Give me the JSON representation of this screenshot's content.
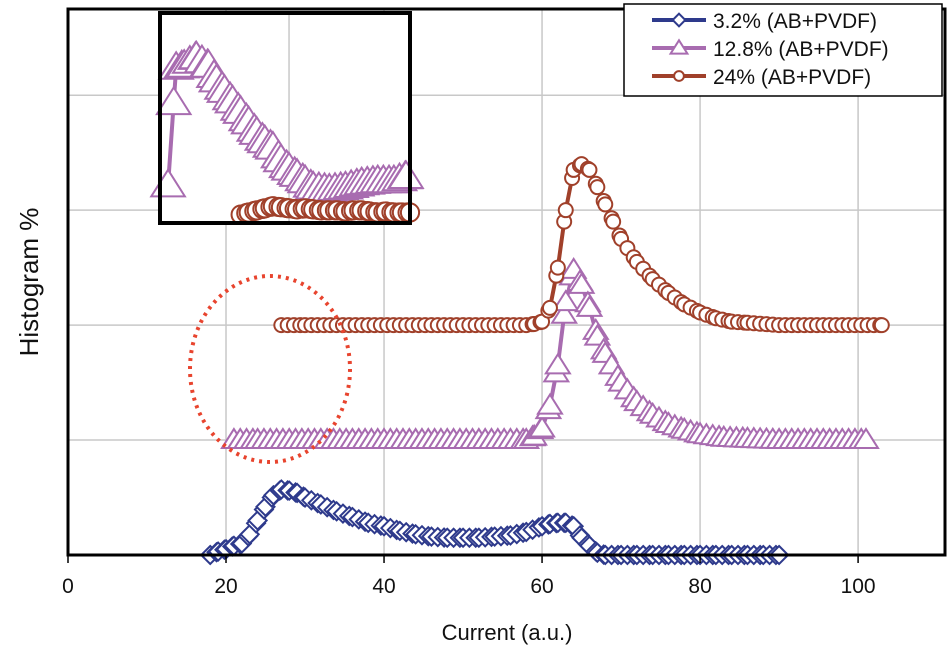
{
  "chart_data": {
    "type": "line",
    "title": "",
    "xlabel": "Current (a.u.)",
    "ylabel": "Histogram %",
    "xlim": [
      0,
      111
    ],
    "ylim": [
      0,
      4.75
    ],
    "x_ticks": [
      "0",
      "20",
      "40",
      "60",
      "80",
      "100"
    ],
    "y_ticks_labeled": false,
    "grid": true,
    "legend_position": "top-right",
    "series": [
      {
        "name": "3.2% (AB+PVDF)",
        "color": "#2e3a8c",
        "marker": "diamond",
        "x": [
          18,
          19,
          20,
          21,
          22,
          23,
          24,
          25,
          26,
          27,
          28,
          29,
          30,
          32,
          34,
          36,
          38,
          40,
          42,
          44,
          46,
          48,
          50,
          52,
          54,
          56,
          58,
          60,
          61,
          62,
          63,
          64,
          65,
          66,
          67,
          68,
          70,
          72,
          74,
          76,
          78,
          80,
          82,
          84,
          86,
          88,
          90
        ],
        "y": [
          0,
          0.03,
          0.05,
          0.08,
          0.1,
          0.18,
          0.3,
          0.42,
          0.52,
          0.57,
          0.56,
          0.54,
          0.5,
          0.44,
          0.38,
          0.33,
          0.28,
          0.25,
          0.21,
          0.18,
          0.16,
          0.15,
          0.15,
          0.15,
          0.16,
          0.17,
          0.2,
          0.25,
          0.27,
          0.28,
          0.28,
          0.25,
          0.15,
          0.08,
          0.02,
          0,
          0,
          0,
          0,
          0,
          0,
          0,
          0,
          0,
          0,
          0,
          0
        ]
      },
      {
        "name": "12.8% (AB+PVDF)",
        "color": "#a86cb0",
        "marker": "triangle",
        "x": [
          21,
          24,
          28,
          32,
          36,
          40,
          44,
          48,
          52,
          56,
          58,
          59,
          60,
          61,
          62,
          63,
          64,
          65,
          66,
          67,
          68,
          70,
          72,
          74,
          76,
          78,
          80,
          83,
          86,
          90,
          94,
          98,
          101
        ],
        "y": [
          1,
          1,
          1,
          1,
          1,
          1,
          1,
          1,
          1,
          1,
          1,
          1.03,
          1.1,
          1.3,
          1.65,
          2.2,
          2.48,
          2.35,
          2.15,
          1.9,
          1.75,
          1.5,
          1.33,
          1.22,
          1.14,
          1.09,
          1.05,
          1.02,
          1.01,
          1,
          1,
          1,
          1
        ]
      },
      {
        "name": "24% (AB+PVDF)",
        "color": "#a0402a",
        "marker": "circle",
        "x": [
          27,
          30,
          34,
          38,
          42,
          46,
          50,
          54,
          58,
          59,
          60,
          61,
          62,
          63,
          64,
          65,
          66,
          67,
          68,
          69,
          70,
          72,
          74,
          76,
          78,
          80,
          82,
          84,
          86,
          90,
          94,
          98,
          103
        ],
        "y": [
          2,
          2,
          2,
          2,
          2,
          2,
          2,
          2,
          2,
          2.01,
          2.03,
          2.15,
          2.5,
          3.0,
          3.35,
          3.4,
          3.35,
          3.2,
          3.05,
          2.9,
          2.75,
          2.55,
          2.4,
          2.28,
          2.18,
          2.11,
          2.06,
          2.03,
          2.02,
          2,
          2,
          2,
          2
        ]
      }
    ],
    "inset": {
      "xlim": [
        14,
        45
      ],
      "ylim": [
        0,
        10
      ],
      "grid_x": [
        30
      ],
      "series": [
        {
          "name": "12.8% (AB+PVDF)",
          "x": [
            15,
            16,
            17,
            18.5,
            20,
            21,
            22,
            23,
            24,
            25,
            26,
            27,
            28,
            29,
            30,
            31,
            32,
            33,
            35,
            37,
            39,
            41,
            43,
            44.5
          ],
          "y": [
            1.8,
            7.4,
            7.5,
            7.9,
            7.5,
            6.8,
            6.3,
            5.8,
            5.3,
            4.8,
            4.3,
            3.9,
            3.6,
            3.0,
            2.6,
            2.3,
            2.0,
            1.7,
            1.6,
            1.7,
            1.9,
            2.0,
            2.0,
            2.2
          ]
        },
        {
          "name": "24% (AB+PVDF)",
          "x": [
            24,
            25,
            26,
            27,
            28,
            29,
            30,
            31,
            32,
            33,
            34,
            35,
            36,
            37,
            38,
            39,
            40,
            41,
            42,
            43,
            44,
            45
          ],
          "y": [
            0.4,
            0.5,
            0.6,
            0.7,
            0.8,
            0.75,
            0.7,
            0.65,
            0.7,
            0.65,
            0.6,
            0.6,
            0.6,
            0.55,
            0.6,
            0.6,
            0.55,
            0.5,
            0.55,
            0.5,
            0.5,
            0.5
          ]
        }
      ]
    }
  }
}
